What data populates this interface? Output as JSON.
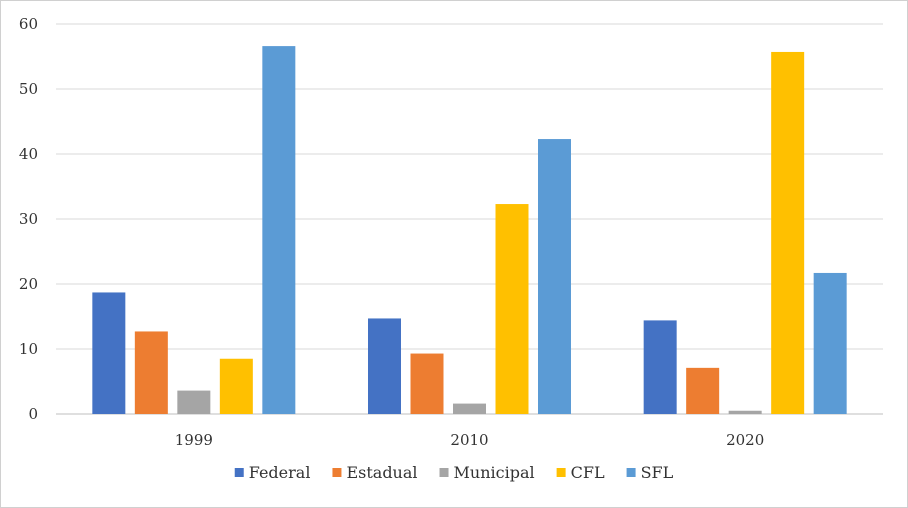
{
  "chart_data": {
    "type": "bar",
    "title": "",
    "xlabel": "",
    "ylabel": "",
    "categories": [
      "1999",
      "2010",
      "2020"
    ],
    "series": [
      {
        "name": "Federal",
        "color": "#4472C4",
        "values": [
          18.7,
          14.7,
          14.4
        ]
      },
      {
        "name": "Estadual",
        "color": "#ED7D31",
        "values": [
          12.7,
          9.3,
          7.1
        ]
      },
      {
        "name": "Municipal",
        "color": "#A5A5A5",
        "values": [
          3.6,
          1.6,
          0.5
        ]
      },
      {
        "name": "CFL",
        "color": "#FFC000",
        "values": [
          8.5,
          32.3,
          55.7
        ]
      },
      {
        "name": "SFL",
        "color": "#5B9BD5",
        "values": [
          56.6,
          42.3,
          21.7
        ]
      }
    ],
    "ylim": [
      0,
      60
    ],
    "yticks": [
      "0",
      "10",
      "20",
      "30",
      "40",
      "50",
      "60"
    ],
    "ytick_values": [
      0,
      10,
      20,
      30,
      40,
      50,
      60
    ],
    "grid": true,
    "legend_position": "bottom"
  }
}
